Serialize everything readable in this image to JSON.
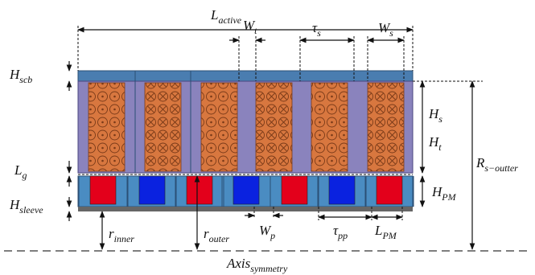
{
  "labels": [
    {
      "symbol": "L",
      "subscript": "active"
    },
    {
      "symbol": "H",
      "subscript": "scb"
    },
    {
      "symbol": "W",
      "subscript": "t"
    },
    {
      "symbol": "τ",
      "subscript": "s"
    },
    {
      "symbol": "W",
      "subscript": "s"
    },
    {
      "symbol": "H",
      "subscript": "s"
    },
    {
      "symbol": "H",
      "subscript": "t"
    },
    {
      "symbol": "R",
      "subscript": "s−outter"
    },
    {
      "symbol": "L",
      "subscript": "g"
    },
    {
      "symbol": "H",
      "subscript": "PM"
    },
    {
      "symbol": "H",
      "subscript": "sleeve"
    },
    {
      "symbol": "r",
      "subscript": "inner"
    },
    {
      "symbol": "r",
      "subscript": "outer"
    },
    {
      "symbol": "W",
      "subscript": "p"
    },
    {
      "symbol": "τ",
      "subscript": "pp"
    },
    {
      "symbol": "L",
      "subscript": "PM"
    },
    {
      "symbol": "Axis",
      "subscript": "symmetry"
    }
  ]
}
